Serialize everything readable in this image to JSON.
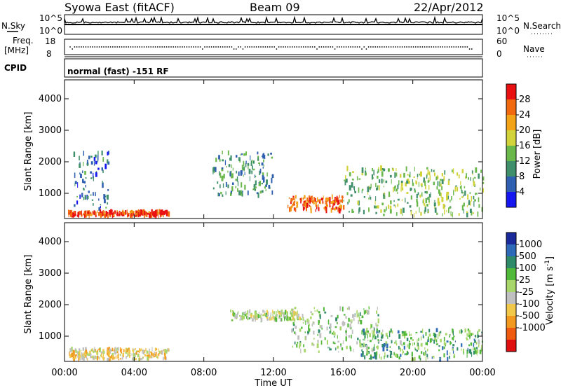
{
  "header": {
    "station": "Syowa East (fitACF)",
    "beam": "Beam 09",
    "date": "22/Apr/2012"
  },
  "top_panels": {
    "nsky_label": "N.Sky",
    "nsky_ticks": [
      "10^5",
      "10^0"
    ],
    "nsearch_label": "N.Search",
    "nsearch_ticks": [
      "10^5",
      "10^0"
    ],
    "freq_label_line1": "Freq.",
    "freq_label_line2": "[MHz]",
    "freq_ticks": [
      "18",
      "8"
    ],
    "nave_label": "Nave",
    "nave_ticks": [
      "60",
      "0"
    ],
    "cpid_label": "CPID",
    "cpid_text": "normal (fast) -151 RF"
  },
  "colors": {
    "power_scale": [
      "#1616f0",
      "#2f5fb0",
      "#3e8f6a",
      "#6ab84c",
      "#d2d23a",
      "#f2a318",
      "#f26a10",
      "#e81010"
    ],
    "velocity_scale": [
      "#e01010",
      "#f05a10",
      "#f29a20",
      "#f2c84a",
      "#c0c0c0",
      "#a8d66a",
      "#52b83a",
      "#2f8a6a",
      "#2f6ab8",
      "#1a2a9a"
    ]
  },
  "chart_data": [
    {
      "type": "heatmap",
      "title": "",
      "ylabel": "Slant Range [km]",
      "xlabel": "",
      "x_ticks": [
        "00:00",
        "04:00",
        "08:00",
        "12:00",
        "16:00",
        "20:00",
        "00:00"
      ],
      "xlim_hours": [
        0,
        24
      ],
      "ylim": [
        200,
        4600
      ],
      "y_ticks": [
        "1000",
        "2000",
        "3000",
        "4000"
      ],
      "colorbar": {
        "label": "Power [dB]",
        "ticks": [
          "4",
          "8",
          "12",
          "16",
          "20",
          "24",
          "28"
        ],
        "range": [
          0,
          32
        ]
      },
      "features": [
        {
          "name": "near-range band",
          "hours": [
            0.2,
            6.0
          ],
          "range_km": [
            280,
            420
          ],
          "power_db": 28
        },
        {
          "name": "early scatter",
          "hours": [
            0.5,
            2.5
          ],
          "range_km": [
            500,
            2300
          ],
          "power_db": 8
        },
        {
          "name": "midday patch",
          "hours": [
            8.5,
            12.0
          ],
          "range_km": [
            900,
            2300
          ],
          "power_db": 10
        },
        {
          "name": "afternoon band",
          "hours": [
            12.8,
            16.0
          ],
          "range_km": [
            450,
            900
          ],
          "power_db": 26
        },
        {
          "name": "evening scatter",
          "hours": [
            16.0,
            24.0
          ],
          "range_km": [
            300,
            1800
          ],
          "power_db": 14
        }
      ]
    },
    {
      "type": "heatmap",
      "title": "",
      "ylabel": "Slant Range [km]",
      "xlabel": "Time UT",
      "x_ticks": [
        "00:00",
        "04:00",
        "08:00",
        "12:00",
        "16:00",
        "20:00",
        "00:00"
      ],
      "xlim_hours": [
        0,
        24
      ],
      "ylim": [
        200,
        4600
      ],
      "y_ticks": [
        "1000",
        "2000",
        "3000",
        "4000"
      ],
      "colorbar": {
        "label": "Velocity [m s^-1]",
        "ticks": [
          "1000",
          "500",
          "100",
          "25",
          "-25",
          "-100",
          "-500",
          "-1000"
        ],
        "range": [
          -1250,
          1250
        ]
      },
      "features": [
        {
          "name": "near-range flow",
          "hours": [
            0.2,
            6.0
          ],
          "range_km": [
            250,
            600
          ],
          "velocity": -300
        },
        {
          "name": "ground scatter band",
          "hours": [
            9.5,
            13.5
          ],
          "range_km": [
            1500,
            1800
          ],
          "velocity": 0
        },
        {
          "name": "afternoon flow",
          "hours": [
            13.0,
            18.0
          ],
          "range_km": [
            500,
            1900
          ],
          "velocity": 200
        },
        {
          "name": "evening flow",
          "hours": [
            17.0,
            24.0
          ],
          "range_km": [
            250,
            1200
          ],
          "velocity": 400
        }
      ]
    }
  ]
}
